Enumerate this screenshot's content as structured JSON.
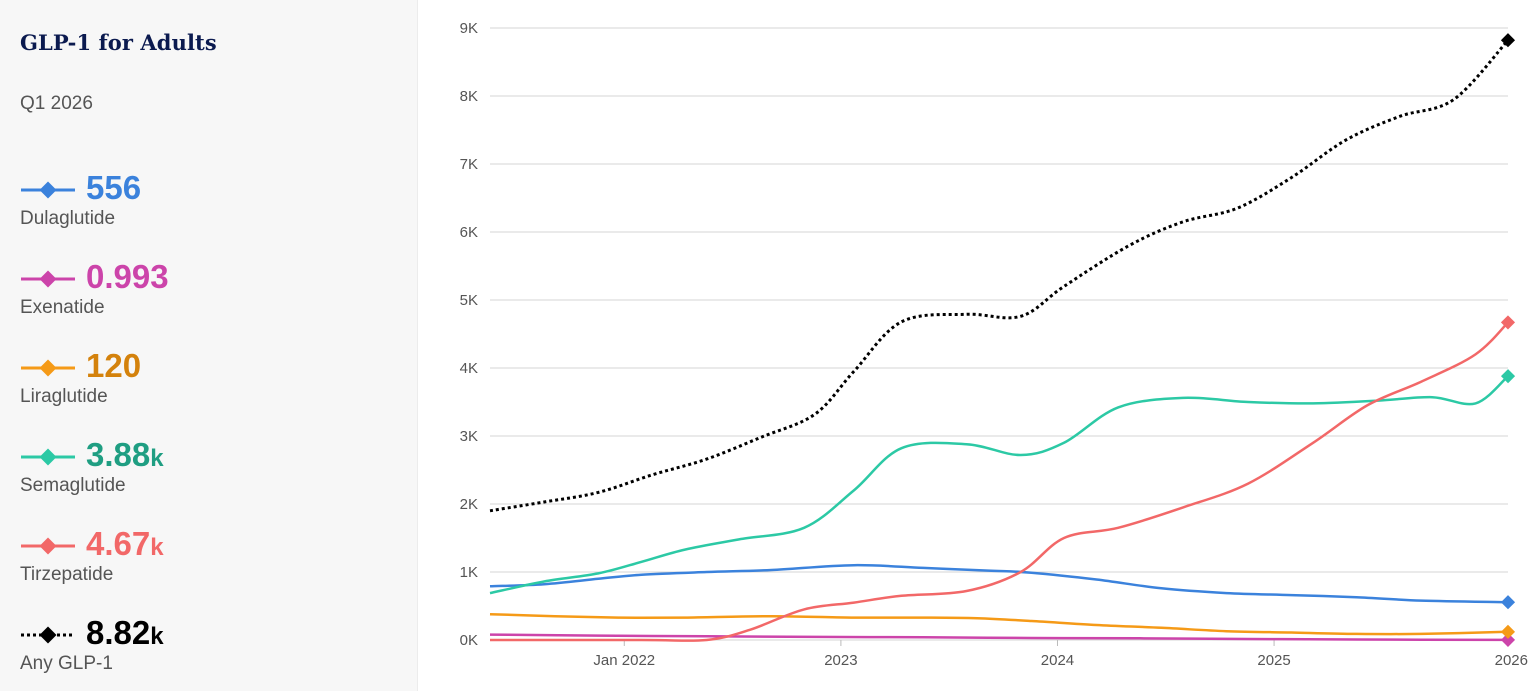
{
  "sidebar": {
    "title": "GLP-1 for Adults",
    "period": "Q1 2026",
    "items": [
      {
        "label": "Dulaglutide",
        "value": "556",
        "unit": "",
        "color": "#3b82dc",
        "value_color": "#3b82dc",
        "dashed": false
      },
      {
        "label": "Exenatide",
        "value": "0.993",
        "unit": "",
        "color": "#cc44aa",
        "value_color": "#cc44aa",
        "dashed": false
      },
      {
        "label": "Liraglutide",
        "value": "120",
        "unit": "",
        "color": "#f59a17",
        "value_color": "#d4820c",
        "dashed": false
      },
      {
        "label": "Semaglutide",
        "value": "3.88",
        "unit": "k",
        "color": "#2cc9a5",
        "value_color": "#1f9e82",
        "dashed": false
      },
      {
        "label": "Tirzepatide",
        "value": "4.67",
        "unit": "k",
        "color": "#f26868",
        "value_color": "#f26868",
        "dashed": false
      },
      {
        "label": "Any GLP-1",
        "value": "8.82",
        "unit": "k",
        "color": "#000000",
        "value_color": "#000000",
        "dashed": true
      }
    ]
  },
  "chart_data": {
    "type": "line",
    "ylim": [
      0,
      9000
    ],
    "y_ticks": [
      0,
      1000,
      2000,
      3000,
      4000,
      5000,
      6000,
      7000,
      8000,
      9000
    ],
    "y_tick_labels": [
      "0K",
      "1K",
      "2K",
      "3K",
      "4K",
      "5K",
      "6K",
      "7K",
      "8K",
      "9K"
    ],
    "xlim": [
      2021.3,
      2026.0
    ],
    "x_ticks": [
      2021.92,
      2022.92,
      2023.92,
      2024.92,
      2026.0
    ],
    "x_tick_labels": [
      "Jan 2022",
      "2023",
      "2024",
      "2025",
      "2026"
    ],
    "grid": true,
    "series": [
      {
        "name": "Dulaglutide",
        "color": "#3b82dc",
        "dashed": false,
        "x": [
          2021.3,
          2021.55,
          2021.8,
          2022.0,
          2022.3,
          2022.6,
          2022.98,
          2023.3,
          2023.6,
          2023.8,
          2024.1,
          2024.4,
          2024.7,
          2025.0,
          2025.3,
          2025.6,
          2026.0
        ],
        "y": [
          790,
          820,
          900,
          960,
          1000,
          1030,
          1100,
          1060,
          1020,
          990,
          890,
          760,
          690,
          660,
          630,
          580,
          556
        ]
      },
      {
        "name": "Exenatide",
        "color": "#cc44aa",
        "dashed": false,
        "x": [
          2021.3,
          2021.8,
          2022.3,
          2022.8,
          2023.3,
          2023.8,
          2024.3,
          2024.8,
          2025.3,
          2026.0
        ],
        "y": [
          80,
          65,
          55,
          45,
          40,
          30,
          25,
          15,
          8,
          1
        ]
      },
      {
        "name": "Liraglutide",
        "color": "#f59a17",
        "dashed": false,
        "x": [
          2021.3,
          2021.6,
          2021.9,
          2022.2,
          2022.6,
          2022.98,
          2023.3,
          2023.55,
          2023.8,
          2024.1,
          2024.4,
          2024.7,
          2025.0,
          2025.3,
          2025.6,
          2026.0
        ],
        "y": [
          380,
          350,
          330,
          330,
          350,
          330,
          330,
          320,
          280,
          220,
          180,
          130,
          110,
          90,
          90,
          120
        ]
      },
      {
        "name": "Semaglutide",
        "color": "#2cc9a5",
        "dashed": false,
        "x": [
          2021.3,
          2021.55,
          2021.8,
          2022.0,
          2022.2,
          2022.45,
          2022.75,
          2022.98,
          2023.2,
          2023.5,
          2023.75,
          2023.95,
          2024.2,
          2024.5,
          2024.8,
          2025.1,
          2025.4,
          2025.65,
          2025.85,
          2026.0
        ],
        "y": [
          690,
          860,
          980,
          1150,
          1330,
          1480,
          1650,
          2200,
          2820,
          2880,
          2720,
          2900,
          3420,
          3560,
          3500,
          3480,
          3520,
          3570,
          3480,
          3880
        ]
      },
      {
        "name": "Tirzepatide",
        "color": "#f26868",
        "dashed": false,
        "x": [
          2021.3,
          2022.0,
          2022.3,
          2022.5,
          2022.75,
          2022.98,
          2023.2,
          2023.5,
          2023.75,
          2023.95,
          2024.2,
          2024.5,
          2024.8,
          2025.1,
          2025.35,
          2025.6,
          2025.85,
          2026.0
        ],
        "y": [
          0,
          0,
          0,
          150,
          450,
          550,
          650,
          720,
          1000,
          1500,
          1650,
          1950,
          2300,
          2900,
          3450,
          3800,
          4200,
          4670
        ]
      },
      {
        "name": "Any GLP-1",
        "color": "#000000",
        "dashed": true,
        "x": [
          2021.3,
          2021.55,
          2021.8,
          2022.05,
          2022.3,
          2022.55,
          2022.8,
          2022.98,
          2023.2,
          2023.5,
          2023.75,
          2023.95,
          2024.25,
          2024.5,
          2024.75,
          2025.0,
          2025.25,
          2025.5,
          2025.75,
          2026.0
        ],
        "y": [
          1900,
          2030,
          2170,
          2430,
          2660,
          2980,
          3320,
          3950,
          4680,
          4790,
          4760,
          5200,
          5800,
          6150,
          6350,
          6800,
          7350,
          7700,
          7950,
          8820
        ]
      }
    ]
  }
}
